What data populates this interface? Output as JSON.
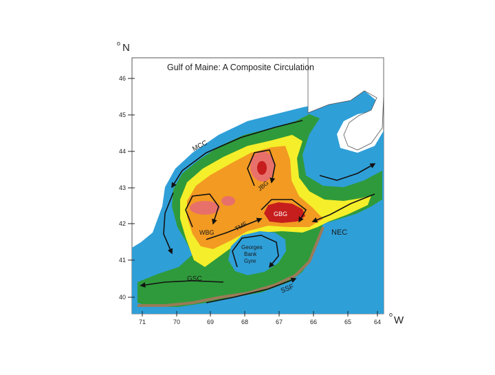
{
  "map": {
    "title": "Gulf of Maine: A Composite Circulation",
    "lat_unit_label": "N",
    "lon_unit_label": "W",
    "lat_ticks": [
      "46",
      "45",
      "44",
      "43",
      "42",
      "41",
      "40"
    ],
    "lon_ticks": [
      "71",
      "70",
      "69",
      "68",
      "67",
      "66",
      "65",
      "64"
    ],
    "current_labels": {
      "mcc": "MCC",
      "jbg": "JBG",
      "gbg": "GBG",
      "wbg": "WBG",
      "tmf": "TMF",
      "nec": "NEC",
      "gsc": "GSC",
      "ssf": "SSF",
      "georges_line1": "Georges",
      "georges_line2": "Bank",
      "georges_line3": "Gyre"
    },
    "colors": {
      "ocean": "#2f9fd8",
      "shelf_green": "#2f9a3b",
      "yellow": "#f5ee2a",
      "orange": "#f29a22",
      "pink": "#e8706a",
      "deep_red": "#c61d1d",
      "land": "#ffffff",
      "coast": "#9a7a58"
    }
  }
}
